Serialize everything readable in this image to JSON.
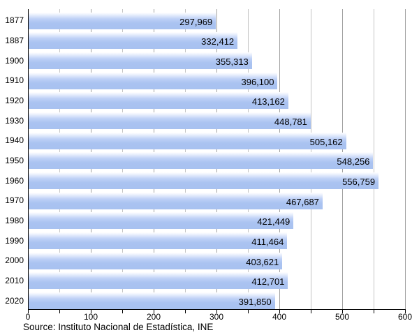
{
  "chart_data": {
    "type": "bar",
    "orientation": "horizontal",
    "title": "",
    "xlabel": "",
    "ylabel": "",
    "categories": [
      "1877",
      "1887",
      "1900",
      "1910",
      "1920",
      "1930",
      "1940",
      "1950",
      "1960",
      "1970",
      "1980",
      "1990",
      "2000",
      "2010",
      "2020"
    ],
    "values": [
      297969,
      332412,
      355313,
      396100,
      413162,
      448781,
      505162,
      548256,
      556759,
      467687,
      421449,
      411464,
      403621,
      412701,
      391850
    ],
    "value_labels": [
      "297,969",
      "332,412",
      "355,313",
      "396,100",
      "413,162",
      "448,781",
      "505,162",
      "548,256",
      "556,759",
      "467,687",
      "421,449",
      "411,464",
      "403,621",
      "412,701",
      "391,850"
    ],
    "xlim": [
      0,
      600000
    ],
    "x_major_tick_labels": [
      "0",
      "100",
      "200",
      "300",
      "400",
      "500",
      "600"
    ],
    "x_major_tick_step": 100000,
    "x_minor_tick_step": 50000,
    "grid": "vertical gridlines every 50 thousand",
    "legend": "none",
    "bar_color": "#aac3f1",
    "bar_gradient_top": "#ffffff",
    "major_gridline_color": "#a0a0a0",
    "minor_gridline_color": "#c4c4c4",
    "axis_color": "#000000",
    "source": "Source: Instituto Nacional de Estadística, INE"
  }
}
